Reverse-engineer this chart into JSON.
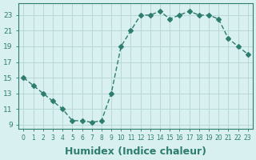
{
  "x": [
    0,
    1,
    2,
    3,
    4,
    5,
    6,
    7,
    8,
    9,
    10,
    11,
    12,
    13,
    14,
    15,
    16,
    17,
    18,
    19,
    20,
    21,
    22,
    23
  ],
  "y": [
    15,
    14,
    13,
    12,
    11,
    9.5,
    9.5,
    9.3,
    9.5,
    13,
    19,
    21,
    23,
    23,
    23.5,
    22.5,
    23,
    23.5,
    23,
    23,
    22.5,
    20,
    19,
    18
  ],
  "line_color": "#2e7d6e",
  "marker": "D",
  "marker_size": 3,
  "bg_color": "#d8f0f0",
  "grid_color": "#b8d8d8",
  "tick_color": "#2e7d6e",
  "xlabel": "Humidex (Indice chaleur)",
  "xlabel_fontsize": 9,
  "yticks": [
    9,
    11,
    13,
    15,
    17,
    19,
    21,
    23
  ],
  "ylim": [
    8.5,
    24.5
  ],
  "xlim": [
    -0.5,
    23.5
  ],
  "xticks": [
    0,
    1,
    2,
    3,
    4,
    5,
    6,
    7,
    8,
    9,
    10,
    11,
    12,
    13,
    14,
    15,
    16,
    17,
    18,
    19,
    20,
    21,
    22,
    23
  ]
}
